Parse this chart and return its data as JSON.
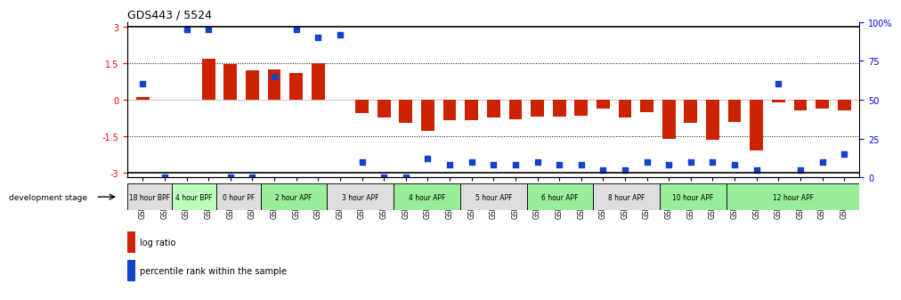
{
  "title": "GDS443 / 5524",
  "samples": [
    "GSM4585",
    "GSM4586",
    "GSM4587",
    "GSM4588",
    "GSM4589",
    "GSM4590",
    "GSM4591",
    "GSM4592",
    "GSM4593",
    "GSM4594",
    "GSM4595",
    "GSM4596",
    "GSM4597",
    "GSM4598",
    "GSM4599",
    "GSM4600",
    "GSM4601",
    "GSM4602",
    "GSM4603",
    "GSM4604",
    "GSM4605",
    "GSM4606",
    "GSM4607",
    "GSM4608",
    "GSM4609",
    "GSM4610",
    "GSM4611",
    "GSM4612",
    "GSM4613",
    "GSM4614",
    "GSM4615",
    "GSM4616",
    "GSM4617"
  ],
  "log_ratio": [
    0.1,
    0.0,
    0.0,
    1.7,
    1.45,
    1.2,
    1.25,
    1.1,
    1.5,
    0.0,
    -0.55,
    -0.75,
    -0.95,
    -1.3,
    -0.85,
    -0.85,
    -0.75,
    -0.8,
    -0.7,
    -0.7,
    -0.65,
    -0.35,
    -0.75,
    -0.5,
    -1.6,
    -0.95,
    -1.65,
    -0.9,
    -2.1,
    -0.1,
    -0.45,
    -0.35,
    -0.45
  ],
  "percentile": [
    60,
    0,
    95,
    95,
    0,
    0,
    65,
    95,
    90,
    92,
    10,
    0,
    0,
    12,
    8,
    10,
    8,
    8,
    10,
    8,
    8,
    5,
    5,
    10,
    8,
    10,
    10,
    8,
    5,
    60,
    5,
    10,
    15
  ],
  "stage_groups": [
    {
      "label": "18 hour BPF",
      "start": 0,
      "end": 2,
      "color": "#dddddd"
    },
    {
      "label": "4 hour BPF",
      "start": 2,
      "end": 4,
      "color": "#bbffbb"
    },
    {
      "label": "0 hour PF",
      "start": 4,
      "end": 6,
      "color": "#dddddd"
    },
    {
      "label": "2 hour APF",
      "start": 6,
      "end": 9,
      "color": "#99ee99"
    },
    {
      "label": "3 hour APF",
      "start": 9,
      "end": 12,
      "color": "#dddddd"
    },
    {
      "label": "4 hour APF",
      "start": 12,
      "end": 15,
      "color": "#99ee99"
    },
    {
      "label": "5 hour APF",
      "start": 15,
      "end": 18,
      "color": "#dddddd"
    },
    {
      "label": "6 hour APF",
      "start": 18,
      "end": 21,
      "color": "#99ee99"
    },
    {
      "label": "8 hour APF",
      "start": 21,
      "end": 24,
      "color": "#dddddd"
    },
    {
      "label": "10 hour APF",
      "start": 24,
      "end": 27,
      "color": "#99ee99"
    },
    {
      "label": "12 hour APF",
      "start": 27,
      "end": 33,
      "color": "#99ee99"
    }
  ],
  "bar_color": "#cc2200",
  "dot_color": "#1144cc",
  "ylim": [
    -3.2,
    3.2
  ],
  "yticks_left": [
    -3,
    -1.5,
    0,
    1.5,
    3
  ],
  "yticks_right": [
    0,
    25,
    50,
    75,
    100
  ],
  "ytick_right_labels": [
    "0",
    "25",
    "50",
    "75",
    "100%"
  ]
}
